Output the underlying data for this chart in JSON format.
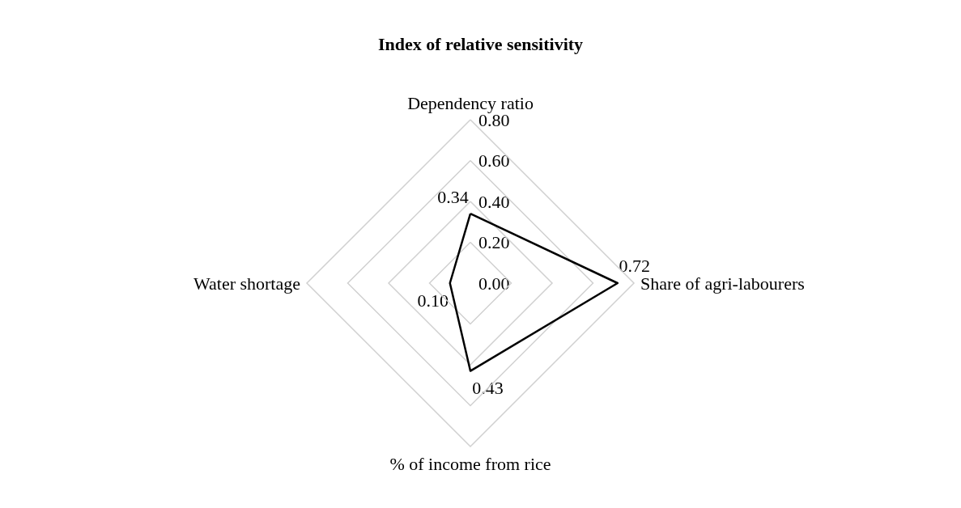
{
  "chart_data": {
    "type": "radar",
    "title": "Index of relative sensitivity",
    "categories": [
      "Dependency ratio",
      "Share of agri-labourers",
      "% of income from rice",
      "Water shortage"
    ],
    "series": [
      {
        "color": "#000000",
        "values": [
          0.34,
          0.72,
          0.43,
          0.1
        ],
        "value_labels": [
          "0.34",
          "0.72",
          "0.43",
          "0.10"
        ]
      }
    ],
    "ylim": [
      0,
      0.8
    ],
    "yticks": [
      {
        "value": 0,
        "label": "0.00"
      },
      {
        "value": 0.2,
        "label": "0.20"
      },
      {
        "value": 0.4,
        "label": "0.40"
      },
      {
        "value": 0.6,
        "label": "0.60"
      },
      {
        "value": 0.8,
        "label": "0.80"
      }
    ],
    "grid": true,
    "marker": "none",
    "line_style": "solid"
  }
}
